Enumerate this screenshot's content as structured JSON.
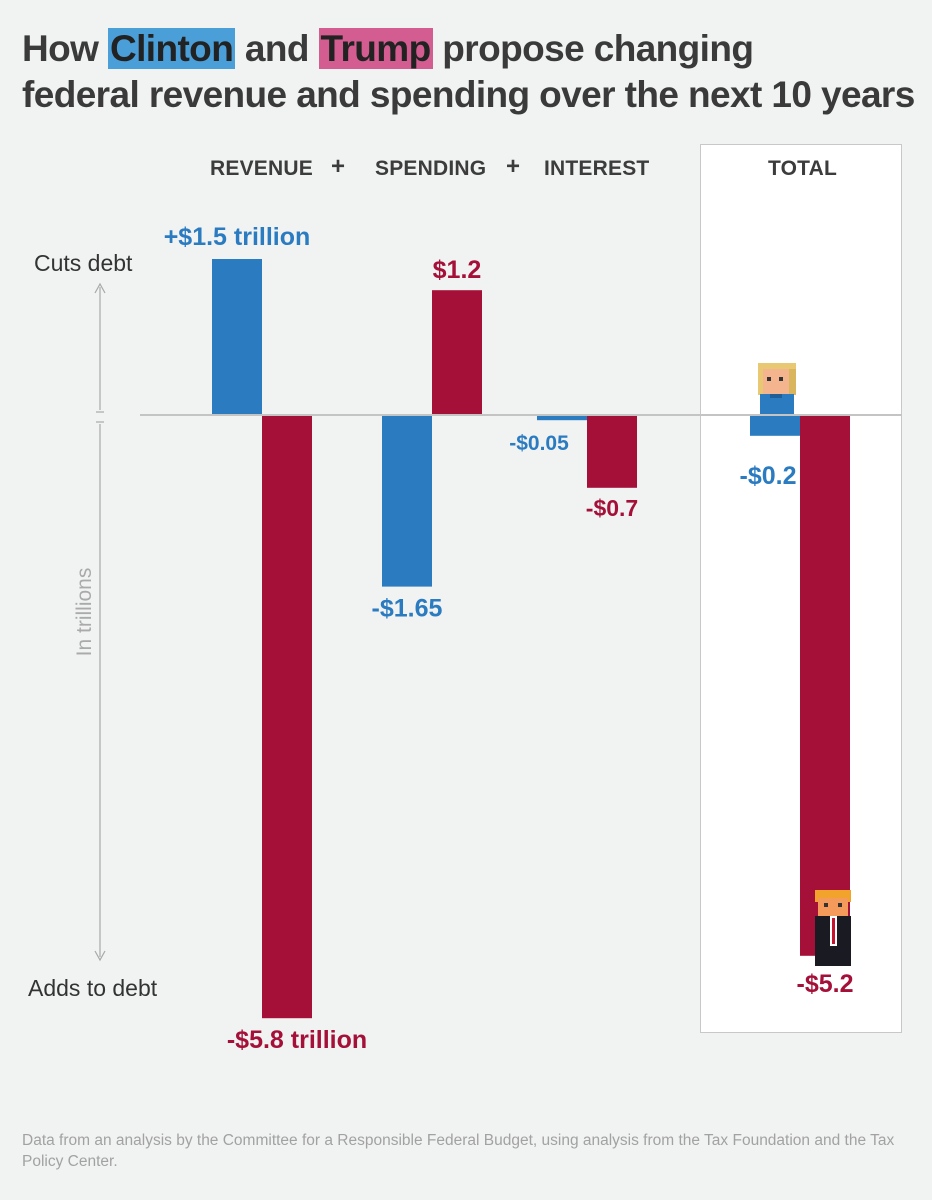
{
  "title": {
    "before": "How ",
    "clinton": "Clinton",
    "middle": " and ",
    "trump": "Trump",
    "after_line1": " propose changing",
    "line2": "federal revenue and spending over the next 10 years"
  },
  "headers": {
    "revenue": "REVENUE",
    "plus1": "+",
    "spending": "SPENDING",
    "plus2": "+",
    "interest": "INTEREST",
    "total": "TOTAL"
  },
  "axis": {
    "top_label": "Cuts debt",
    "bottom_label": "Adds to debt",
    "unit_label": "In trillions"
  },
  "footer": "Data from an analysis by the Committee for a Responsible Federal Budget, using analysis from the Tax Foundation and the Tax Policy Center.",
  "colors": {
    "clinton": "#2b7bc1",
    "trump": "#a41038",
    "clinton_highlight": "#4a9fd9",
    "trump_highlight": "#d35d91",
    "axis": "#c4c4c4",
    "background": "#f1f2f2"
  },
  "chart_data": {
    "type": "bar",
    "categories": [
      "REVENUE",
      "SPENDING",
      "INTEREST",
      "TOTAL"
    ],
    "series": [
      {
        "name": "Clinton",
        "values": [
          1.5,
          -1.65,
          -0.05,
          -0.2
        ],
        "labels": [
          "+$1.5 trillion",
          "-$1.65",
          "-$0.05",
          "-$0.2"
        ]
      },
      {
        "name": "Trump",
        "values": [
          -5.8,
          1.2,
          -0.7,
          -5.2
        ],
        "labels": [
          "-$5.8 trillion",
          "$1.2",
          "-$0.7",
          "-$5.2"
        ]
      }
    ],
    "ylabel": "In trillions",
    "ylim": [
      -5.8,
      1.5
    ],
    "grid": false
  }
}
